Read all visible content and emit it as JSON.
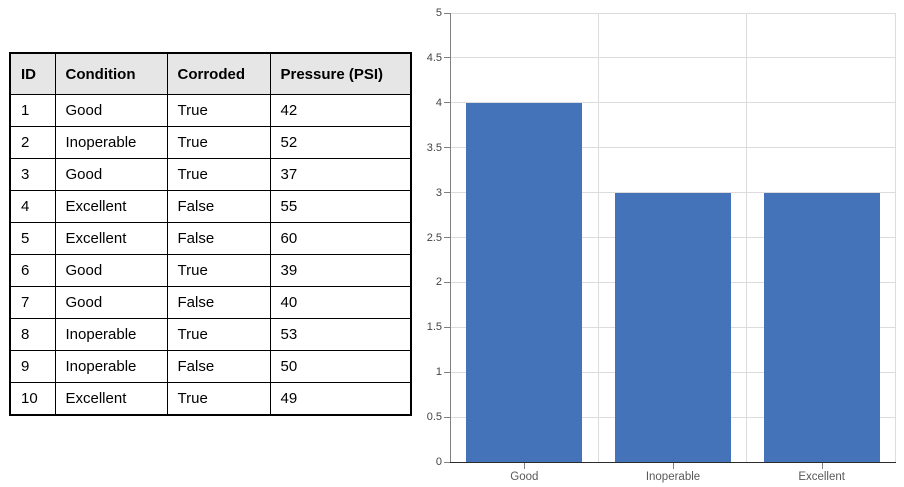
{
  "table": {
    "headers": [
      "ID",
      "Condition",
      "Corroded",
      "Pressure (PSI)"
    ],
    "rows": [
      [
        "1",
        "Good",
        "True",
        "42"
      ],
      [
        "2",
        "Inoperable",
        "True",
        "52"
      ],
      [
        "3",
        "Good",
        "True",
        "37"
      ],
      [
        "4",
        "Excellent",
        "False",
        "55"
      ],
      [
        "5",
        "Excellent",
        "False",
        "60"
      ],
      [
        "6",
        "Good",
        "True",
        "39"
      ],
      [
        "7",
        "Good",
        "False",
        "40"
      ],
      [
        "8",
        "Inoperable",
        "True",
        "53"
      ],
      [
        "9",
        "Inoperable",
        "False",
        "50"
      ],
      [
        "10",
        "Excellent",
        "True",
        "49"
      ]
    ],
    "header_bg": "#E7E6E6",
    "border_color": "#000000"
  },
  "chart_data": {
    "type": "bar",
    "categories": [
      "Good",
      "Inoperable",
      "Excellent"
    ],
    "values": [
      4,
      3,
      3
    ],
    "title": "",
    "xlabel": "",
    "ylabel": "",
    "ylim": [
      0,
      5
    ],
    "ytick_step": 0.5,
    "ytick_labels": [
      "0",
      "0.5",
      "1",
      "1.5",
      "2",
      "2.5",
      "3",
      "3.5",
      "4",
      "4.5",
      "5"
    ],
    "grid": true,
    "legend": "none",
    "bar_color": "#4473B9",
    "gridline_color": "#DCDCDC",
    "y_axis_color": "#808080",
    "x_axis_color": "#2B2B2B",
    "tick_color": "#808080",
    "y_label_color": "#444444",
    "x_label_color": "#595959"
  }
}
